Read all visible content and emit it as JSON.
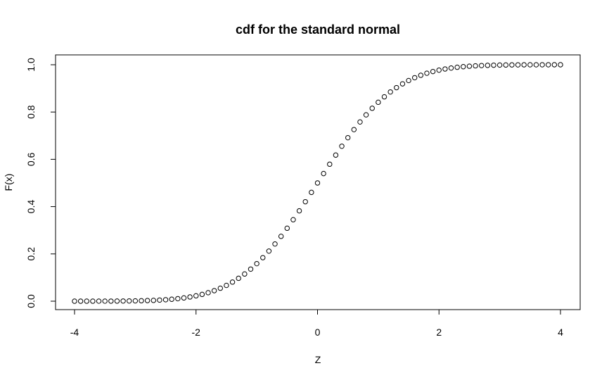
{
  "chart_data": {
    "type": "scatter",
    "title": "cdf for the standard normal",
    "xlabel": "Z",
    "ylabel": "F(x)",
    "xlim": [
      -4,
      4
    ],
    "ylim": [
      0,
      1
    ],
    "xticks": [
      -4,
      -2,
      0,
      2,
      4
    ],
    "xtick_labels": [
      "-4",
      "-2",
      "0",
      "2",
      "4"
    ],
    "yticks": [
      0,
      0.2,
      0.4,
      0.6,
      0.8,
      1
    ],
    "ytick_labels": [
      "0.0",
      "0.2",
      "0.4",
      "0.6",
      "0.8",
      "1.0"
    ],
    "grid": false,
    "marker": "open-circle",
    "colors": {
      "points": "#000000",
      "axes": "#000000",
      "background": "#ffffff"
    },
    "x": [
      -4.0,
      -3.9,
      -3.8,
      -3.7,
      -3.6,
      -3.5,
      -3.4,
      -3.3,
      -3.2,
      -3.1,
      -3.0,
      -2.9,
      -2.8,
      -2.7,
      -2.6,
      -2.5,
      -2.4,
      -2.3,
      -2.2,
      -2.1,
      -2.0,
      -1.9,
      -1.8,
      -1.7,
      -1.6,
      -1.5,
      -1.4,
      -1.3,
      -1.2,
      -1.1,
      -1.0,
      -0.9,
      -0.8,
      -0.7,
      -0.6,
      -0.5,
      -0.4,
      -0.3,
      -0.2,
      -0.1,
      0.0,
      0.1,
      0.2,
      0.3,
      0.4,
      0.5,
      0.6,
      0.7,
      0.8,
      0.9,
      1.0,
      1.1,
      1.2,
      1.3,
      1.4,
      1.5,
      1.6,
      1.7,
      1.8,
      1.9,
      2.0,
      2.1,
      2.2,
      2.3,
      2.4,
      2.5,
      2.6,
      2.7,
      2.8,
      2.9,
      3.0,
      3.1,
      3.2,
      3.3,
      3.4,
      3.5,
      3.6,
      3.7,
      3.8,
      3.9,
      4.0
    ],
    "y": [
      0.0,
      0.0,
      0.0001,
      0.0001,
      0.0002,
      0.0002,
      0.0003,
      0.0005,
      0.0007,
      0.001,
      0.0013,
      0.0019,
      0.0026,
      0.0035,
      0.0047,
      0.0062,
      0.0082,
      0.0107,
      0.0139,
      0.0179,
      0.0228,
      0.0287,
      0.0359,
      0.0446,
      0.0548,
      0.0668,
      0.0808,
      0.0968,
      0.1151,
      0.1357,
      0.1587,
      0.1841,
      0.2119,
      0.242,
      0.2743,
      0.3085,
      0.3446,
      0.3821,
      0.4207,
      0.4602,
      0.5,
      0.5398,
      0.5793,
      0.6179,
      0.6554,
      0.6915,
      0.7257,
      0.758,
      0.7881,
      0.8159,
      0.8413,
      0.8643,
      0.8849,
      0.9032,
      0.9192,
      0.9332,
      0.9452,
      0.9554,
      0.9641,
      0.9713,
      0.9772,
      0.9821,
      0.9861,
      0.9893,
      0.9918,
      0.9938,
      0.9953,
      0.9965,
      0.9974,
      0.9981,
      0.9987,
      0.999,
      0.9993,
      0.9995,
      0.9997,
      0.9998,
      0.9998,
      0.9999,
      0.9999,
      1.0,
      1.0
    ]
  }
}
